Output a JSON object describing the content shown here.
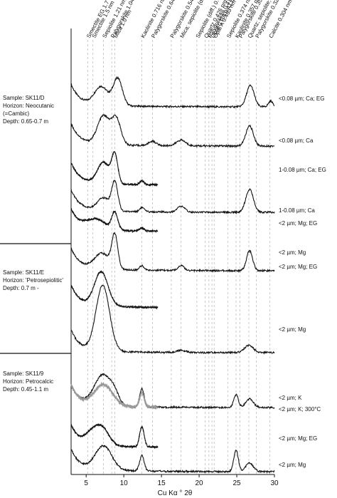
{
  "chart_data": {
    "type": "line",
    "xlabel": "Cu Kα ° 2θ",
    "xlim": [
      3,
      30
    ],
    "xticks": [
      5,
      10,
      15,
      20,
      25,
      30
    ],
    "grid": "dashed vertical reference lines",
    "peaks": [
      {
        "label": "Smectite EG 1.7 nm",
        "x": 5.2
      },
      {
        "label": "Smectite 1.5 nm",
        "x": 5.9
      },
      {
        "label": "Sepiolite 1.21 nm",
        "x": 7.3
      },
      {
        "label": "Palygorskite 1.048 nm",
        "x": 8.4
      },
      {
        "label": "Mica 1.0 nm",
        "x": 8.8
      },
      {
        "label": "Kaolinite 0.716 nm",
        "x": 12.4
      },
      {
        "label": "Palygorskite 0.644 nm",
        "x": 13.8
      },
      {
        "label": "Palygorskite 0.542 nm",
        "x": 16.3
      },
      {
        "label": "Mica; sepiolite (diff.) 0.504 nm",
        "x": 17.6
      },
      {
        "label": "Sepiolite (diff.) 0.449 nm",
        "x": 19.7
      },
      {
        "label": "Quartz 0.426 nm",
        "x": 20.8
      },
      {
        "label": "Palygorskite 0.418 nm",
        "x": 21.3
      },
      {
        "label": "Opal CT/A 0.41 nm",
        "x": 21.7
      },
      {
        "label": "Opal A 0.403 nm",
        "x": 22.0
      },
      {
        "label": "Sepiolite 0.374 nm",
        "x": 23.8
      },
      {
        "label": "Kaolinite 0.357 nm",
        "x": 24.9
      },
      {
        "label": "Palygorskite 0.35 nm",
        "x": 25.4
      },
      {
        "label": "Quartz; sepiolite; mica 0.334 nm",
        "x": 26.6
      },
      {
        "label": "Palygorskite 0.323 nm",
        "x": 27.6
      },
      {
        "label": "Calcite 0.304 nm",
        "x": 29.4
      }
    ],
    "samples": [
      {
        "lines": [
          "Sample: SK11/D",
          "Horizon: Neocutanic",
          "(=Cambic)",
          "Depth: 0.65-0.7 m"
        ]
      },
      {
        "lines": [
          "Sample: SK11/E",
          "Horizon: 'Petrosepiolitic'",
          "Depth: 0.7 m -"
        ]
      },
      {
        "lines": [
          "Sample: SK11/9",
          "Horizon: Petrocalcic",
          "Depth: 0.45-1.1 m"
        ]
      }
    ],
    "series": [
      {
        "name": "<0.08 µm; Ca; EG",
        "color": "#111111",
        "x_end": 30,
        "peaks": [
          {
            "x": 7.0,
            "h": 26,
            "w": 0.9
          },
          {
            "x": 9.2,
            "h": 38,
            "w": 0.6
          },
          {
            "x": 26.8,
            "h": 30,
            "w": 0.5
          },
          {
            "x": 29.5,
            "h": 8,
            "w": 0.3
          }
        ]
      },
      {
        "name": "<0.08 µm; Ca",
        "color": "#111111",
        "x_end": 30,
        "peaks": [
          {
            "x": 7.3,
            "h": 40,
            "w": 0.8
          },
          {
            "x": 9.0,
            "h": 36,
            "w": 0.6
          },
          {
            "x": 13.8,
            "h": 6,
            "w": 0.5
          },
          {
            "x": 17.6,
            "h": 8,
            "w": 0.6
          },
          {
            "x": 26.7,
            "h": 28,
            "w": 0.5
          }
        ]
      },
      {
        "name": "1-0.08 µm; Ca; EG",
        "color": "#111111",
        "x_end": 14.5,
        "peaks": [
          {
            "x": 7.3,
            "h": 30,
            "w": 0.8
          },
          {
            "x": 8.8,
            "h": 40,
            "w": 0.4
          },
          {
            "x": 12.4,
            "h": 5,
            "w": 0.3
          }
        ]
      },
      {
        "name": "1-0.08 µm; Ca",
        "color": "#111111",
        "x_end": 30,
        "peaks": [
          {
            "x": 7.3,
            "h": 18,
            "w": 0.8
          },
          {
            "x": 8.8,
            "h": 40,
            "w": 0.4
          },
          {
            "x": 12.4,
            "h": 6,
            "w": 0.3
          },
          {
            "x": 17.6,
            "h": 8,
            "w": 0.5
          },
          {
            "x": 26.7,
            "h": 32,
            "w": 0.5
          }
        ]
      },
      {
        "name": "<2 µm; Mg; EG",
        "color": "#111111",
        "x_end": 14.5,
        "peaks": [
          {
            "x": 6.3,
            "h": 14,
            "w": 1.3
          },
          {
            "x": 8.8,
            "h": 24,
            "w": 0.4
          },
          {
            "x": 12.4,
            "h": 4,
            "w": 0.3
          }
        ]
      },
      {
        "name": "<2 µm; Mg",
        "color": "#111111",
        "x_end": 30,
        "peaks": [
          {
            "x": 7.1,
            "h": 22,
            "w": 1.0
          },
          {
            "x": 8.8,
            "h": 46,
            "w": 0.4
          },
          {
            "x": 12.4,
            "h": 6,
            "w": 0.3
          },
          {
            "x": 17.6,
            "h": 7,
            "w": 0.4
          },
          {
            "x": 26.7,
            "h": 28,
            "w": 0.4
          }
        ]
      },
      {
        "name": "<2 µm; Mg; EG",
        "color": "#111111",
        "x_end": 14.5,
        "peaks": [
          {
            "x": 7.0,
            "h": 48,
            "w": 0.9
          }
        ]
      },
      {
        "name": "<2 µm; Mg",
        "color": "#111111",
        "x_end": 30,
        "peaks": [
          {
            "x": 7.2,
            "h": 92,
            "w": 0.9
          },
          {
            "x": 17.6,
            "h": 3,
            "w": 0.6
          },
          {
            "x": 26.6,
            "h": 10,
            "w": 0.6
          }
        ]
      },
      {
        "name": "<2 µm; K",
        "color": "#111111",
        "x_end": 30,
        "peaks": [
          {
            "x": 7.3,
            "h": 44,
            "w": 1.2
          },
          {
            "x": 8.8,
            "h": 8,
            "w": 0.5
          },
          {
            "x": 12.4,
            "h": 26,
            "w": 0.3
          },
          {
            "x": 24.9,
            "h": 18,
            "w": 0.3
          },
          {
            "x": 26.7,
            "h": 12,
            "w": 0.5
          }
        ]
      },
      {
        "name": "<2 µm; K; 300°C",
        "color": "#999999",
        "x_end": 14.5,
        "peaks": [
          {
            "x": 7.3,
            "h": 30,
            "w": 1.2
          },
          {
            "x": 12.4,
            "h": 20,
            "w": 0.3
          }
        ]
      },
      {
        "name": "<2 µm; Mg; EG",
        "color": "#111111",
        "x_end": 14.5,
        "peaks": [
          {
            "x": 5.8,
            "h": 16,
            "w": 0.9
          },
          {
            "x": 7.2,
            "h": 22,
            "w": 0.9
          },
          {
            "x": 12.4,
            "h": 28,
            "w": 0.3
          }
        ]
      },
      {
        "name": "<2 µm; Mg",
        "color": "#111111",
        "x_end": 30,
        "peaks": [
          {
            "x": 7.3,
            "h": 34,
            "w": 1.1
          },
          {
            "x": 12.4,
            "h": 22,
            "w": 0.3
          },
          {
            "x": 24.9,
            "h": 30,
            "w": 0.3
          },
          {
            "x": 26.7,
            "h": 12,
            "w": 0.5
          }
        ]
      }
    ]
  }
}
